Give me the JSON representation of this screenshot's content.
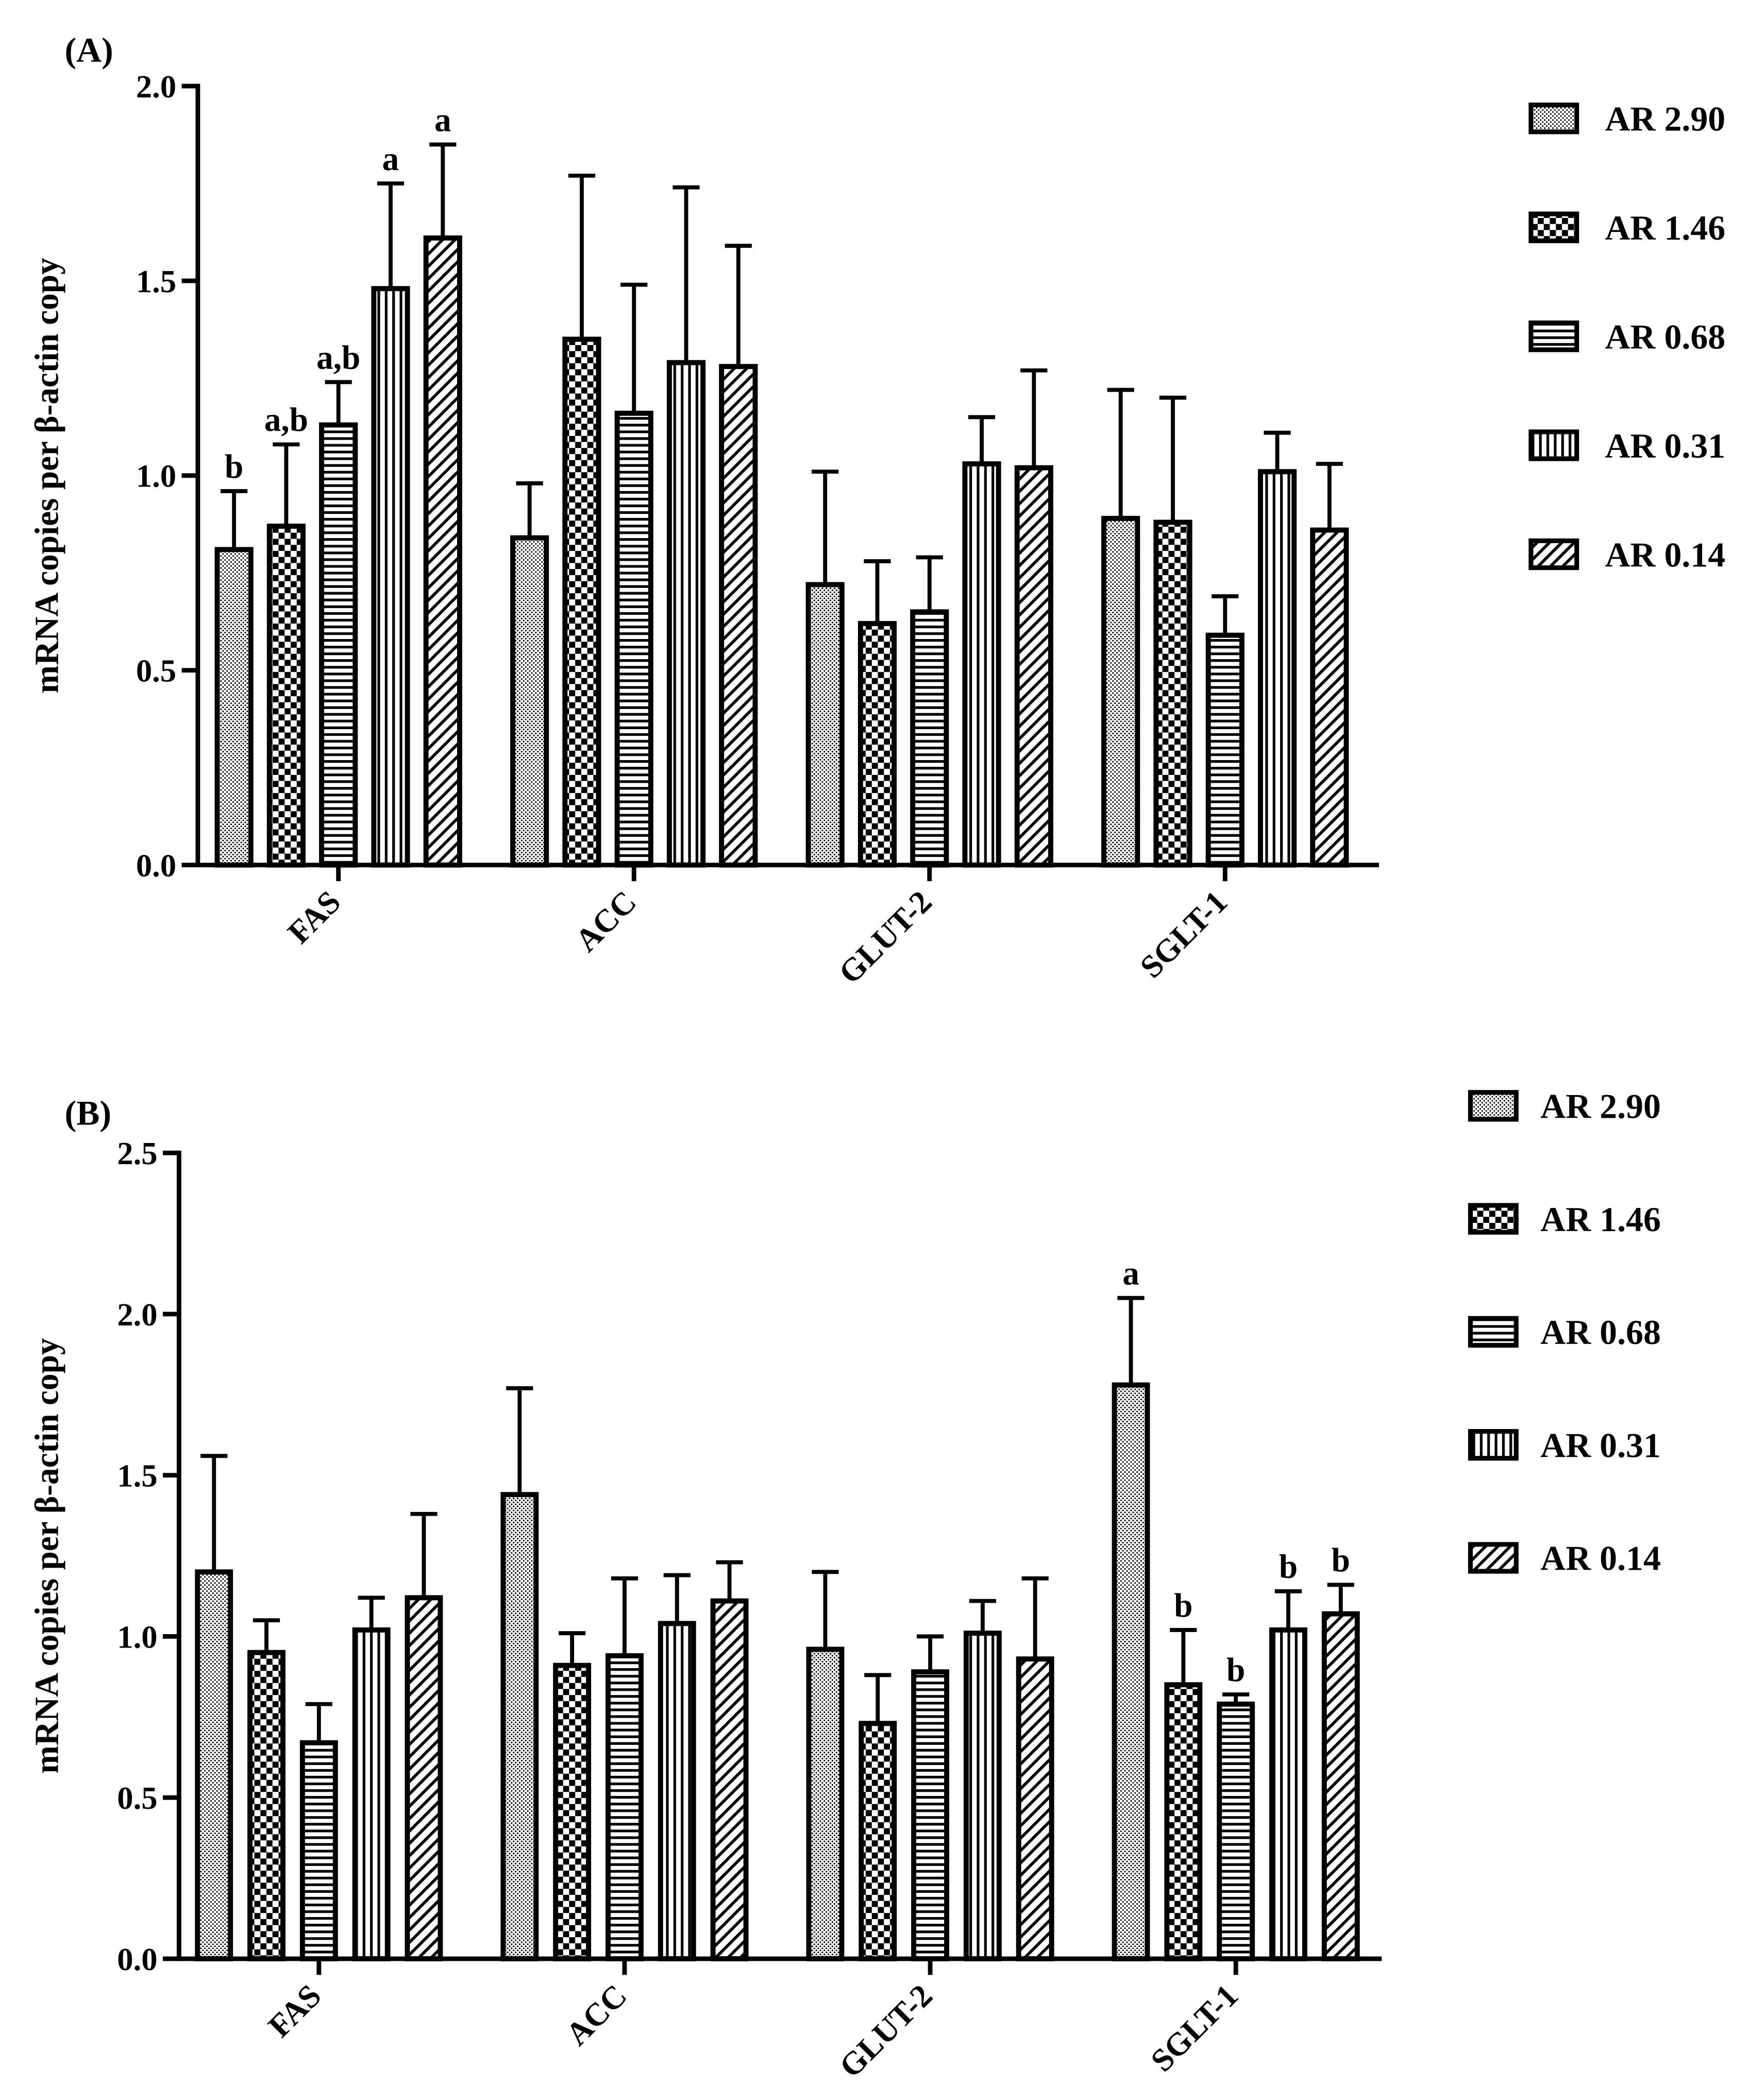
{
  "chart_data": [
    {
      "type": "bar",
      "panel_label": "(A)",
      "ylabel": "mRNA copies per β-actin copy",
      "ylim": [
        0,
        2.0
      ],
      "ytick_labels": [
        "0.0",
        "0.5",
        "1.0",
        "1.5",
        "2.0"
      ],
      "categories": [
        "FAS",
        "ACC",
        "GLUT-2",
        "SGLT-1"
      ],
      "grid": false,
      "legend": "right",
      "series": [
        {
          "name": "AR 2.90",
          "values": [
            0.81,
            0.84,
            0.72,
            0.89
          ],
          "errors": [
            0.15,
            0.14,
            0.29,
            0.33
          ],
          "letters": [
            "b",
            null,
            null,
            null
          ]
        },
        {
          "name": "AR 1.46",
          "values": [
            0.87,
            1.35,
            0.62,
            0.88
          ],
          "errors": [
            0.21,
            0.42,
            0.16,
            0.32
          ],
          "letters": [
            "a,b",
            null,
            null,
            null
          ]
        },
        {
          "name": "AR 0.68",
          "values": [
            1.13,
            1.16,
            0.65,
            0.59
          ],
          "errors": [
            0.11,
            0.33,
            0.14,
            0.1
          ],
          "letters": [
            "a,b",
            null,
            null,
            null
          ]
        },
        {
          "name": "AR 0.31",
          "values": [
            1.48,
            1.29,
            1.03,
            1.01
          ],
          "errors": [
            0.27,
            0.45,
            0.12,
            0.1
          ],
          "letters": [
            "a",
            null,
            null,
            null
          ]
        },
        {
          "name": "AR 0.14",
          "values": [
            1.61,
            1.28,
            1.02,
            0.86
          ],
          "errors": [
            0.24,
            0.31,
            0.25,
            0.17
          ],
          "letters": [
            "a",
            null,
            null,
            null
          ]
        }
      ]
    },
    {
      "type": "bar",
      "panel_label": "(B)",
      "ylabel": "mRNA copies per β-actin copy",
      "ylim": [
        0,
        2.5
      ],
      "ytick_labels": [
        "0.0",
        "0.5",
        "1.0",
        "1.5",
        "2.0",
        "2.5"
      ],
      "categories": [
        "FAS",
        "ACC",
        "GLUT-2",
        "SGLT-1"
      ],
      "grid": false,
      "legend": "right",
      "series": [
        {
          "name": "AR 2.90",
          "values": [
            1.2,
            1.44,
            0.96,
            1.78
          ],
          "errors": [
            0.36,
            0.33,
            0.24,
            0.27
          ],
          "letters": [
            null,
            null,
            null,
            "a"
          ]
        },
        {
          "name": "AR 1.46",
          "values": [
            0.95,
            0.91,
            0.73,
            0.85
          ],
          "errors": [
            0.1,
            0.1,
            0.15,
            0.17
          ],
          "letters": [
            null,
            null,
            null,
            "b"
          ]
        },
        {
          "name": "AR 0.68",
          "values": [
            0.67,
            0.94,
            0.89,
            0.79
          ],
          "errors": [
            0.12,
            0.24,
            0.11,
            0.03
          ],
          "letters": [
            null,
            null,
            null,
            "b"
          ]
        },
        {
          "name": "AR 0.31",
          "values": [
            1.02,
            1.04,
            1.01,
            1.02
          ],
          "errors": [
            0.1,
            0.15,
            0.1,
            0.12
          ],
          "letters": [
            null,
            null,
            null,
            "b"
          ]
        },
        {
          "name": "AR 0.14",
          "values": [
            1.12,
            1.11,
            0.93,
            1.07
          ],
          "errors": [
            0.26,
            0.12,
            0.25,
            0.09
          ],
          "letters": [
            null,
            null,
            null,
            "b"
          ]
        }
      ]
    }
  ]
}
